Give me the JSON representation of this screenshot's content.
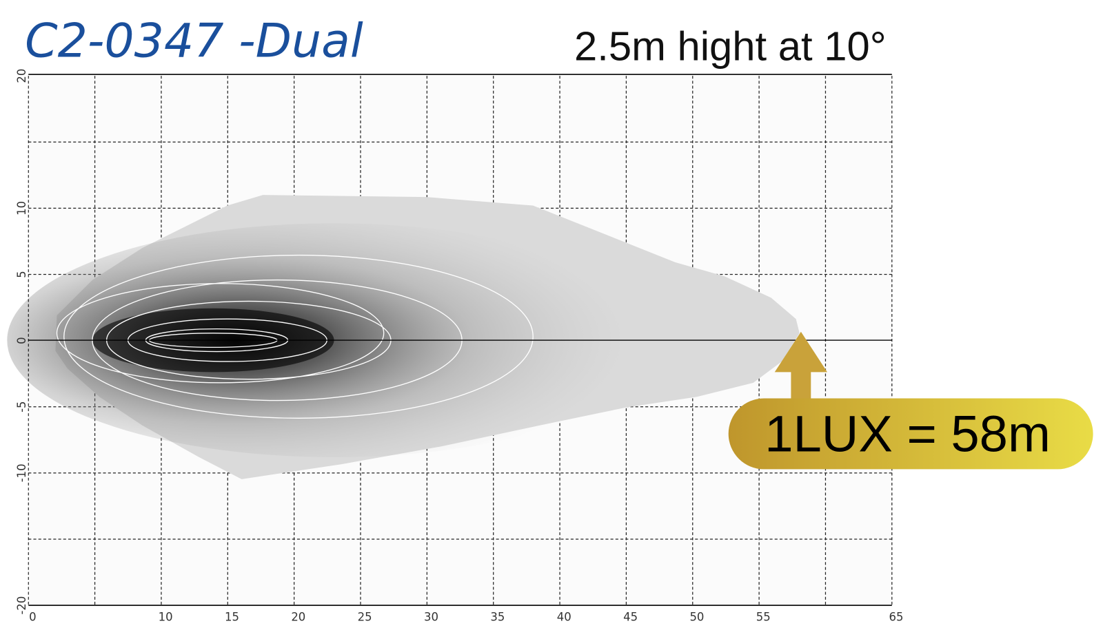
{
  "chart_data": {
    "type": "isolux",
    "title": "C2-0347 -Dual",
    "subtitle": "2.5m hight at 10°",
    "annotation": "1LUX = 58m",
    "xlim": [
      0,
      65
    ],
    "ylim": [
      -20,
      20
    ],
    "xticks": [
      0,
      {
        "value": 5,
        "label": null
      },
      10,
      15,
      20,
      25,
      30,
      35,
      40,
      45,
      50,
      55,
      {
        "value": 60,
        "label": null
      },
      65
    ],
    "yticks": [
      -20,
      {
        "value": -15,
        "label": null
      },
      -10,
      -5,
      0,
      5,
      10,
      {
        "value": 15,
        "label": null
      },
      20
    ],
    "grid": true
  }
}
